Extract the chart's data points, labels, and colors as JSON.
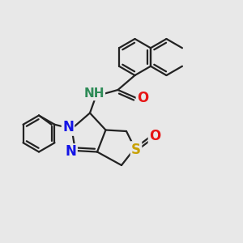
{
  "background_color": "#e8e8e8",
  "bond_color": "#222222",
  "bond_width": 1.6,
  "atom_colors": {
    "N": "#1414e6",
    "O": "#e61414",
    "S": "#c8a000",
    "NH": "#2e8b57",
    "C": "#222222"
  },
  "font_size": 11,
  "figsize": [
    3.0,
    3.0
  ],
  "dpi": 100
}
